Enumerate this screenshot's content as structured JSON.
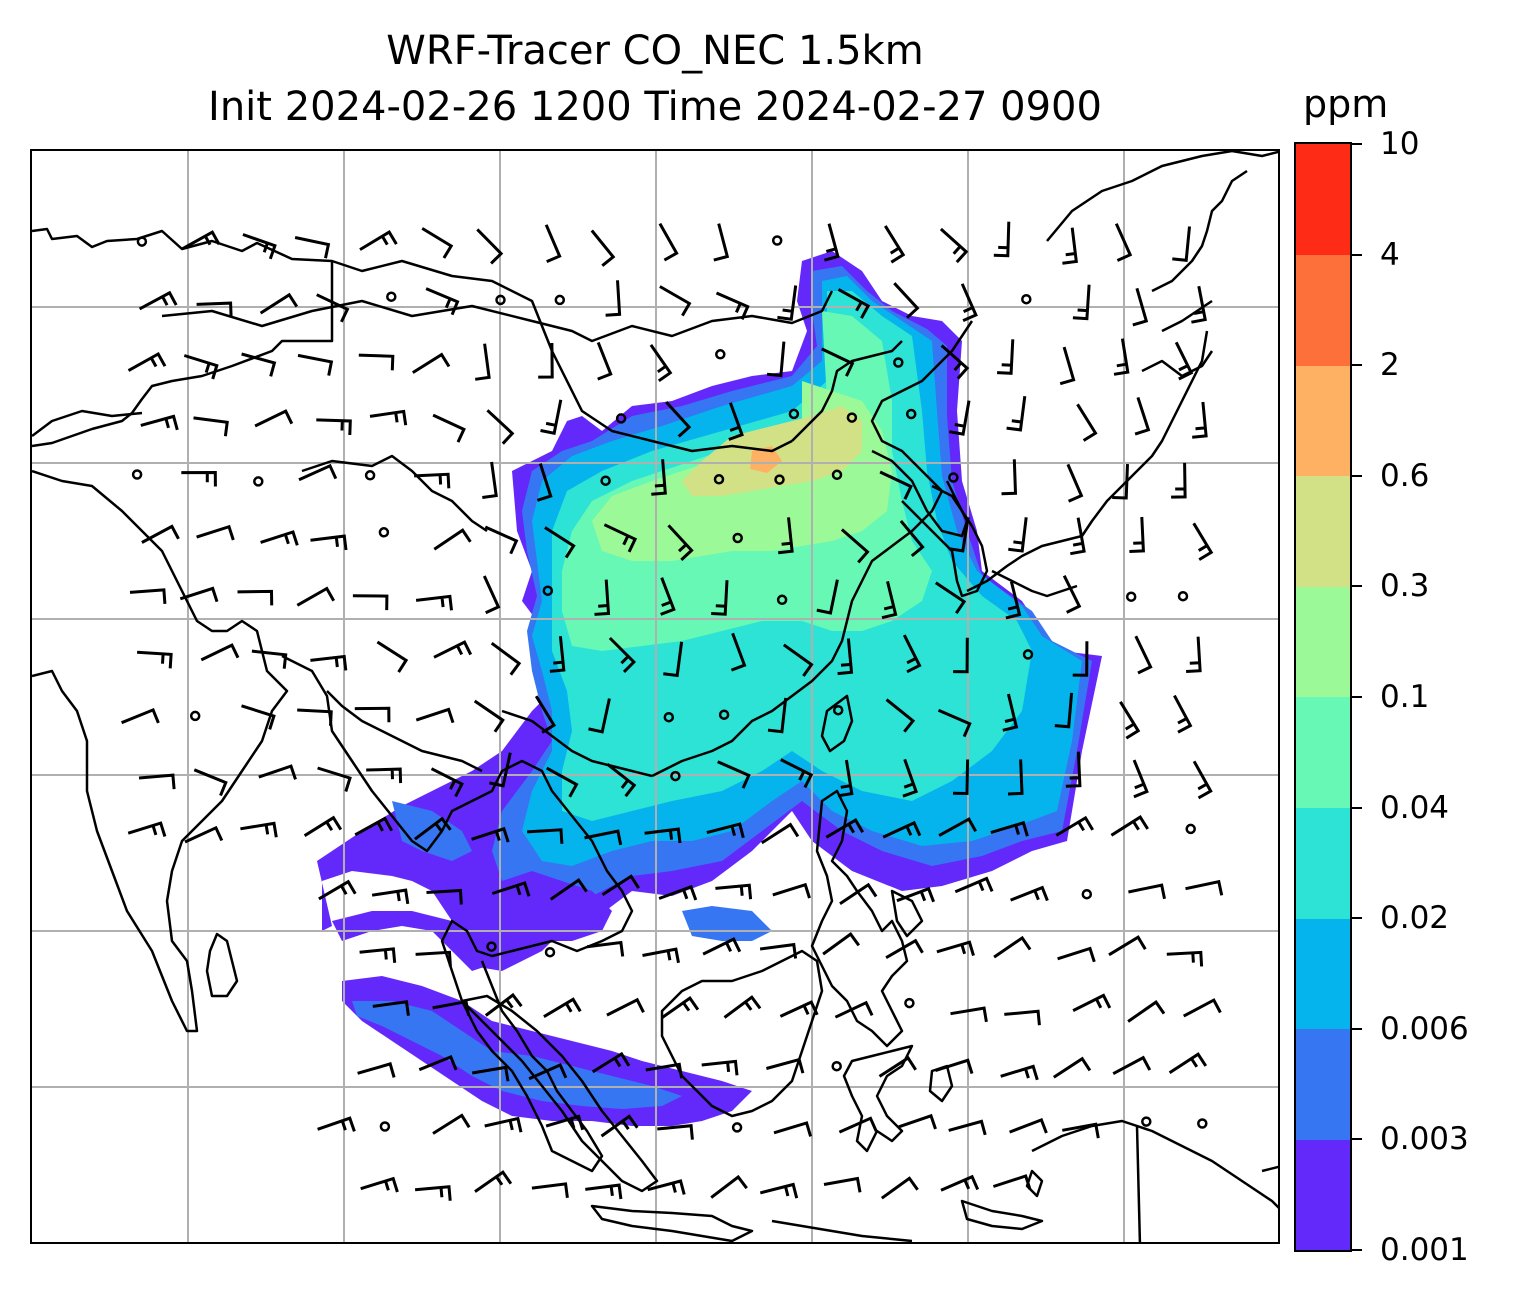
{
  "title": {
    "line1": "WRF-Tracer CO_NEC 1.5km",
    "line2": "Init 2024-02-26 1200 Time 2024-02-27 0900"
  },
  "colorbar": {
    "units": "ppm",
    "levels": [
      "0.001",
      "0.003",
      "0.006",
      "0.02",
      "0.04",
      "0.1",
      "0.3",
      "0.6",
      "2",
      "4",
      "10"
    ],
    "colors": [
      "#6329fb",
      "#3676f3",
      "#05b4ec",
      "#2ce3d6",
      "#66f8b4",
      "#9bfa97",
      "#d2e186",
      "#feb063",
      "#fd703a",
      "#fe2b17"
    ]
  },
  "map": {
    "land_outline_color": "#000000",
    "gridline_color": "#b0b0b0",
    "wind_barb_color": "#000000"
  }
}
